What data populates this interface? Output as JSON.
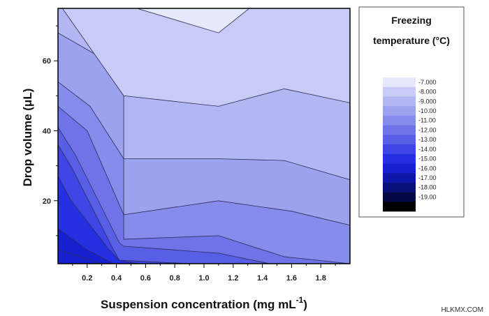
{
  "chart_data": {
    "type": "contour",
    "xlabel": "Suspension concentration (mg mL",
    "xlabel_sup": "-1",
    "xlabel_close": ")",
    "ylabel": "Drop volume (μL)",
    "xlim": [
      0.0,
      2.0
    ],
    "ylim": [
      2,
      75
    ],
    "x_ticks": [
      0.2,
      0.4,
      0.6,
      0.8,
      1.0,
      1.2,
      1.4,
      1.6,
      1.8
    ],
    "x_tick_labels": [
      "0.2",
      "0.4",
      "0.6",
      "0.8",
      "1.0",
      "1.2",
      "1.4",
      "1.6",
      "1.8"
    ],
    "y_ticks": [
      20,
      40,
      60
    ],
    "y_tick_labels": [
      "20",
      "40",
      "60"
    ],
    "legend": {
      "title_line1": "Freezing",
      "title_line2": "temperature (°C)",
      "levels": [
        "-7.000",
        "-8.000",
        "-9.000",
        "-10.00",
        "-11.00",
        "-12.00",
        "-13.00",
        "-14.00",
        "-15.00",
        "-16.00",
        "-17.00",
        "-18.00",
        "-19.00"
      ],
      "colors": [
        "#e6e8fb",
        "#c8cbf5",
        "#b2b6f2",
        "#9da2ee",
        "#858ceb",
        "#6e74e8",
        "#585ee6",
        "#3e45e4",
        "#2530e3",
        "#1521cf",
        "#0d16a8",
        "#08107a",
        "#040845",
        "#000000"
      ]
    },
    "regions": [
      {
        "level": "-7.000",
        "color": "#e6e8fb",
        "boundary": [
          [
            0.54,
            75
          ],
          [
            1.1,
            68
          ],
          [
            1.31,
            75
          ]
        ]
      },
      {
        "level": "-8.000",
        "color": "#c8cbf5",
        "boundary": [
          [
            0.03,
            75
          ],
          [
            0.45,
            50
          ],
          [
            1.1,
            47
          ],
          [
            1.55,
            52
          ],
          [
            2.0,
            48
          ],
          [
            2.0,
            75
          ]
        ]
      },
      {
        "level": "-9.000",
        "color": "#b2b6f2",
        "boundary": [
          [
            0.0,
            68
          ],
          [
            0.25,
            62
          ],
          [
            0.45,
            50
          ],
          [
            0.45,
            32
          ],
          [
            1.1,
            32
          ],
          [
            1.55,
            31.5
          ],
          [
            2.0,
            26
          ],
          [
            2.0,
            48
          ]
        ]
      },
      {
        "level": "-10.00",
        "color": "#9da2ee",
        "boundary": [
          [
            0.0,
            54
          ],
          [
            0.22,
            47
          ],
          [
            0.45,
            32
          ],
          [
            0.45,
            16
          ],
          [
            1.1,
            20
          ],
          [
            1.6,
            17
          ],
          [
            2.0,
            13
          ],
          [
            2.0,
            26
          ]
        ]
      },
      {
        "level": "-11.00",
        "color": "#858ceb",
        "boundary": [
          [
            0.0,
            47
          ],
          [
            0.2,
            40
          ],
          [
            0.45,
            16
          ],
          [
            0.45,
            9
          ],
          [
            1.1,
            10
          ],
          [
            1.55,
            4
          ],
          [
            2.0,
            2
          ],
          [
            2.0,
            13
          ]
        ]
      },
      {
        "level": "-12.00",
        "color": "#6e74e8",
        "boundary": [
          [
            0.0,
            41
          ],
          [
            0.12,
            33
          ],
          [
            0.42,
            8
          ],
          [
            0.45,
            7
          ],
          [
            1.1,
            5
          ],
          [
            1.45,
            2
          ],
          [
            2.0,
            2
          ]
        ]
      },
      {
        "level": "-13.00",
        "color": "#585ee6",
        "boundary": [
          [
            0.0,
            36
          ],
          [
            0.1,
            29
          ],
          [
            0.38,
            6
          ],
          [
            0.42,
            3
          ],
          [
            0.9,
            2
          ]
        ]
      },
      {
        "level": "-14.00",
        "color": "#3e45e4",
        "boundary": [
          [
            0.0,
            27
          ],
          [
            0.09,
            20
          ],
          [
            0.35,
            6
          ],
          [
            0.42,
            3
          ],
          [
            0.55,
            2
          ]
        ]
      },
      {
        "level": "-15.00",
        "color": "#2530e3",
        "boundary": [
          [
            0.0,
            12
          ],
          [
            0.2,
            6
          ],
          [
            0.38,
            2
          ]
        ]
      },
      {
        "level": "-16.00",
        "color": "#1521cf",
        "boundary": [
          [
            0.0,
            6
          ],
          [
            0.3,
            2
          ]
        ]
      }
    ]
  },
  "watermark": "HLKMX.COM"
}
